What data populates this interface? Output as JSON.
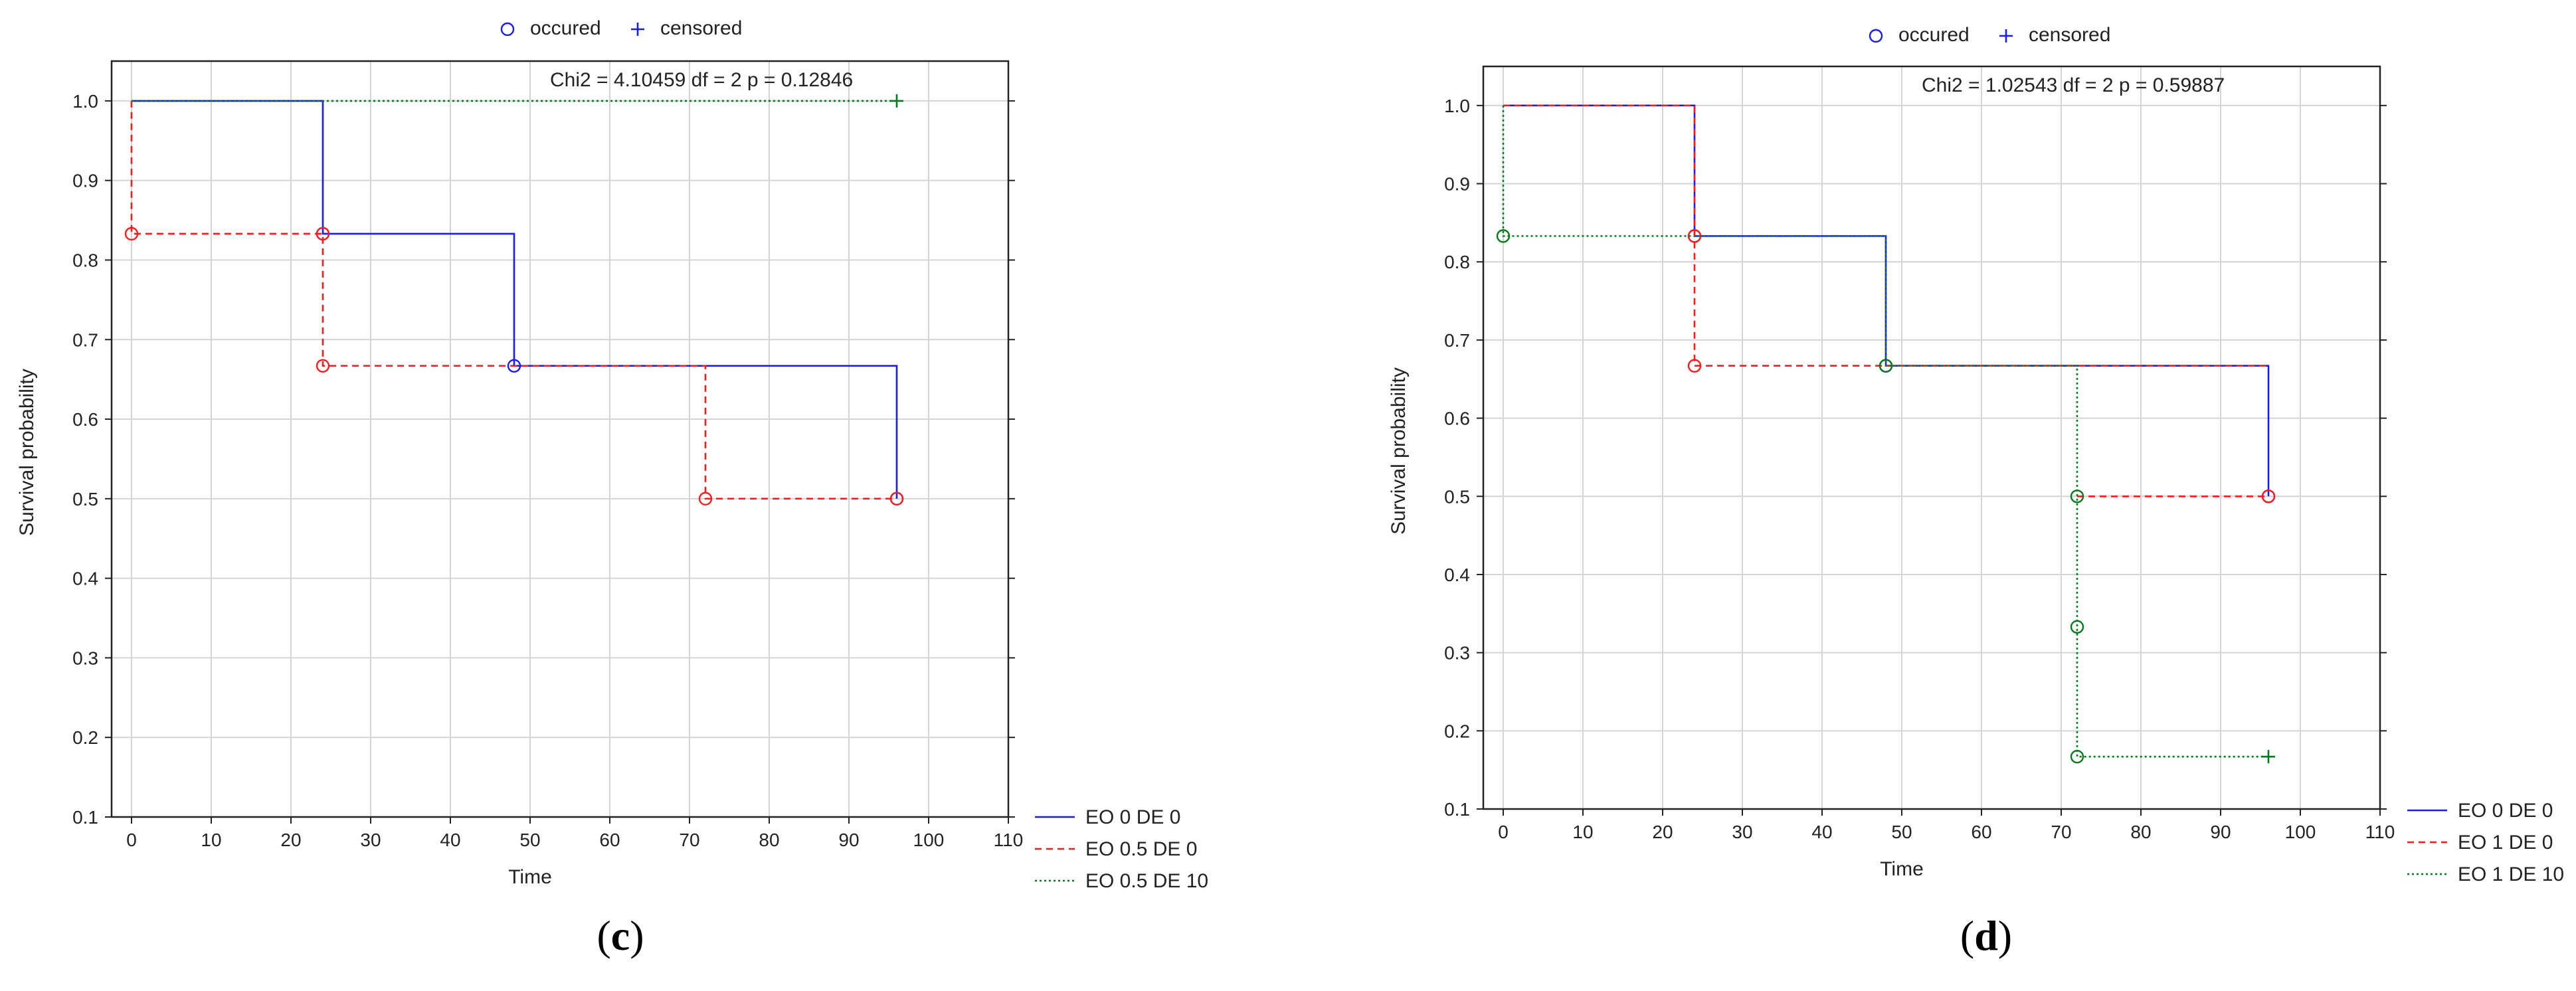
{
  "figure": {
    "legend_marker_occurred": "occured",
    "legend_marker_censored": "censored",
    "colors": {
      "blue": "#1a1aff",
      "red": "#ff1a1a",
      "green": "#007a1a",
      "grid": "#d4d4d4",
      "frame": "#222222"
    }
  },
  "chart_data": [
    {
      "type": "line",
      "panel_label": "c",
      "stat_text": "Chi2 = 4.10459 df = 2 p = 0.12846",
      "xlabel": "Time",
      "ylabel": "Survival probability",
      "xlim": [
        -2.5,
        110
      ],
      "ylim": [
        0.1,
        1.05
      ],
      "xticks": [
        0,
        10,
        20,
        30,
        40,
        50,
        60,
        70,
        80,
        90,
        100,
        110
      ],
      "yticks": [
        0.1,
        0.2,
        0.3,
        0.4,
        0.5,
        0.6,
        0.7,
        0.8,
        0.9,
        1.0
      ],
      "grid": true,
      "step": true,
      "series": [
        {
          "name": "EO 0 DE 0",
          "color": "blue",
          "dash": "solid",
          "x": [
            0,
            24,
            24,
            48,
            48,
            96,
            96
          ],
          "y": [
            1.0,
            1.0,
            0.833,
            0.833,
            0.667,
            0.667,
            0.5
          ],
          "occurred": [
            [
              24,
              0.833
            ],
            [
              48,
              0.667
            ],
            [
              96,
              0.5
            ]
          ],
          "censored": []
        },
        {
          "name": "EO 0.5 DE 0",
          "color": "red",
          "dash": "dashed",
          "x": [
            0,
            0,
            24,
            24,
            72,
            72,
            96
          ],
          "y": [
            1.0,
            0.833,
            0.833,
            0.667,
            0.667,
            0.5,
            0.5
          ],
          "occurred": [
            [
              0,
              0.833
            ],
            [
              24,
              0.833
            ],
            [
              24,
              0.667
            ],
            [
              72,
              0.5
            ],
            [
              96,
              0.5
            ]
          ],
          "censored": []
        },
        {
          "name": "EO 0.5 DE 10",
          "color": "green",
          "dash": "dotted",
          "x": [
            0,
            96
          ],
          "y": [
            1.0,
            1.0
          ],
          "occurred": [],
          "censored": [
            [
              96,
              1.0
            ]
          ]
        }
      ]
    },
    {
      "type": "line",
      "panel_label": "d",
      "stat_text": "Chi2 = 1.02543 df = 2 p = 0.59887",
      "xlabel": "Time",
      "ylabel": "Survival probability",
      "xlim": [
        -2.5,
        110
      ],
      "ylim": [
        0.1,
        1.05
      ],
      "xticks": [
        0,
        10,
        20,
        30,
        40,
        50,
        60,
        70,
        80,
        90,
        100,
        110
      ],
      "yticks": [
        0.1,
        0.2,
        0.3,
        0.4,
        0.5,
        0.6,
        0.7,
        0.8,
        0.9,
        1.0
      ],
      "grid": true,
      "step": true,
      "series": [
        {
          "name": "EO 0 DE 0",
          "color": "blue",
          "dash": "solid",
          "x": [
            0,
            24,
            24,
            48,
            48,
            96,
            96
          ],
          "y": [
            1.0,
            1.0,
            0.833,
            0.833,
            0.667,
            0.667,
            0.5
          ],
          "occurred": [
            [
              24,
              0.833
            ],
            [
              48,
              0.667
            ],
            [
              96,
              0.5
            ]
          ],
          "censored": []
        },
        {
          "name": "EO 1 DE 0",
          "color": "red",
          "dash": "dashed",
          "x": [
            0,
            24,
            24,
            96
          ],
          "y": [
            1.0,
            1.0,
            0.667,
            0.667
          ],
          "x2": [
            72,
            96
          ],
          "y2": [
            0.5,
            0.5
          ],
          "occurred": [
            [
              24,
              0.833
            ],
            [
              24,
              0.667
            ],
            [
              96,
              0.5
            ]
          ],
          "censored": []
        },
        {
          "name": "EO 1 DE 10",
          "color": "green",
          "dash": "dotted",
          "x": [
            0,
            0,
            48,
            48,
            72,
            72,
            96
          ],
          "y": [
            1.0,
            0.833,
            0.833,
            0.667,
            0.667,
            0.167,
            0.167
          ],
          "occurred": [
            [
              0,
              0.833
            ],
            [
              48,
              0.667
            ],
            [
              72,
              0.5
            ],
            [
              72,
              0.333
            ],
            [
              72,
              0.167
            ]
          ],
          "censored": [
            [
              96,
              0.167
            ]
          ]
        }
      ]
    }
  ]
}
